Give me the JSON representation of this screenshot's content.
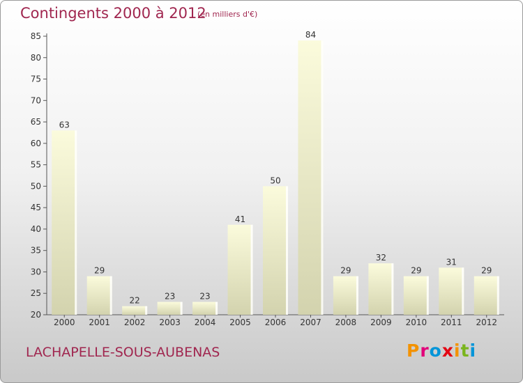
{
  "header": {
    "title": "Contingents 2000 à 2012",
    "unit_note": "(en milliers d'€)"
  },
  "footer": {
    "commune": "LACHAPELLE-SOUS-AUBENAS",
    "logo_text": "Proxiti",
    "logo_colors": [
      "#f39200",
      "#e2007a",
      "#0095d9",
      "#e30613",
      "#f39200",
      "#7ab51d",
      "#0095d9"
    ]
  },
  "colors": {
    "accent": "#a0264f",
    "bar_light": "#fbfbdc",
    "bar_dark": "#d3d3ae"
  },
  "chart_data": {
    "type": "bar",
    "title": "Contingents 2000 à 2012",
    "subtitle": "(en milliers d'€)",
    "xlabel": "",
    "ylabel": "",
    "categories": [
      "2000",
      "2001",
      "2002",
      "2003",
      "2004",
      "2005",
      "2006",
      "2007",
      "2008",
      "2009",
      "2010",
      "2011",
      "2012"
    ],
    "values": [
      63,
      29,
      22,
      23,
      23,
      41,
      50,
      84,
      29,
      32,
      29,
      31,
      29
    ],
    "ylim": [
      20,
      85
    ],
    "yticks": [
      20,
      25,
      30,
      35,
      40,
      45,
      50,
      55,
      60,
      65,
      70,
      75,
      80,
      85
    ],
    "grid": false,
    "data_labels": true
  }
}
